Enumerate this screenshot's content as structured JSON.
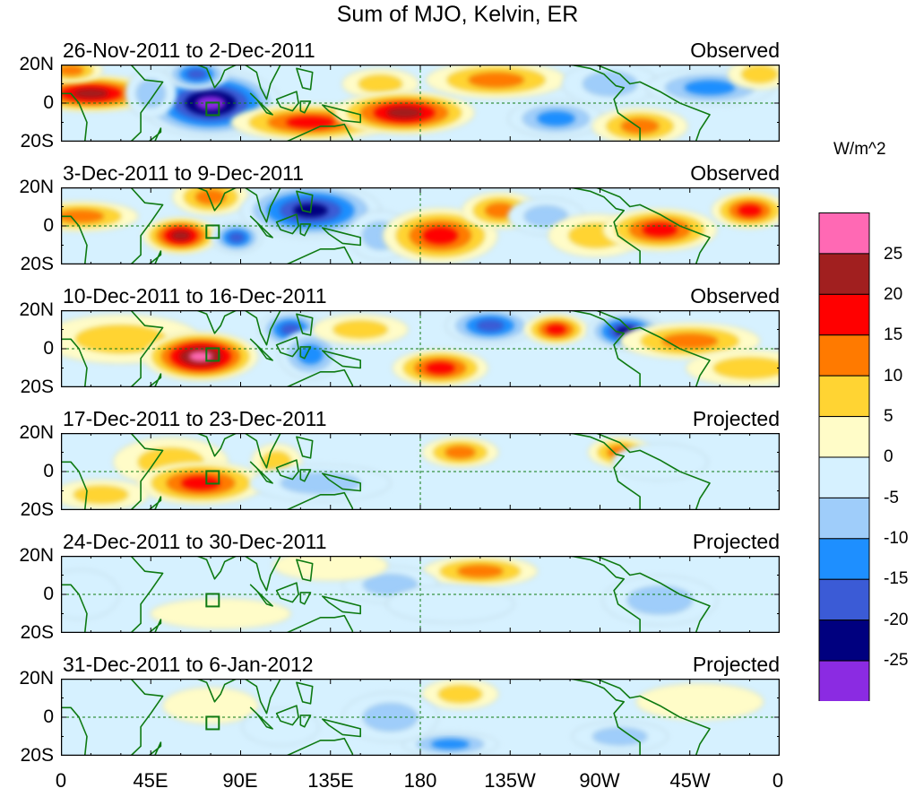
{
  "title": "Sum of MJO, Kelvin, ER",
  "units": "W/m^2",
  "colors": {
    "levels": [
      "#8B2BE2",
      "#00007F",
      "#3B5BD6",
      "#1E8FFF",
      "#9FCDFA",
      "#D6F1FF",
      "#FFFCC8",
      "#FFD433",
      "#FF7A00",
      "#FF0000",
      "#A11F1F",
      "#FF69B4"
    ],
    "coast": "#0E7A12",
    "grid": "#0E7A12"
  },
  "panels": [
    {
      "date": "26-Nov-2011 to 2-Dec-2011",
      "status": "Observed"
    },
    {
      "date": "3-Dec-2011 to 9-Dec-2011",
      "status": "Observed"
    },
    {
      "date": "10-Dec-2011 to 16-Dec-2011",
      "status": "Observed"
    },
    {
      "date": "17-Dec-2011 to 23-Dec-2011",
      "status": "Projected"
    },
    {
      "date": "24-Dec-2011 to 30-Dec-2011",
      "status": "Projected"
    },
    {
      "date": "31-Dec-2011 to 6-Jan-2012",
      "status": "Projected"
    }
  ],
  "chart_data": {
    "type": "heatmap",
    "title": "Sum of MJO, Kelvin, ER",
    "colorbar_label": "W/m^2",
    "colorbar_ticks": [
      "25",
      "20",
      "15",
      "10",
      "5",
      "0",
      "-5",
      "-10",
      "-15",
      "-20",
      "-25"
    ],
    "y_ticks": [
      "20N",
      "0",
      "20S"
    ],
    "x_ticks": [
      "0",
      "45E",
      "90E",
      "135E",
      "180",
      "135W",
      "90W",
      "45W",
      "0"
    ],
    "lon_range": [
      0,
      360
    ],
    "lat_range": [
      -20,
      20
    ],
    "fields": [
      [
        {
          "lon": 15,
          "lat": 5,
          "sx": 22,
          "sy": 6,
          "v": 22
        },
        {
          "lon": 5,
          "lat": 17,
          "sx": 10,
          "sy": 4,
          "v": 14
        },
        {
          "lon": 75,
          "lat": 0,
          "sx": 22,
          "sy": 11,
          "v": -28
        },
        {
          "lon": 68,
          "lat": 15,
          "sx": 10,
          "sy": 5,
          "v": -18
        },
        {
          "lon": 45,
          "lat": 5,
          "sx": 8,
          "sy": 8,
          "v": -6
        },
        {
          "lon": 125,
          "lat": -10,
          "sx": 25,
          "sy": 6,
          "v": 18
        },
        {
          "lon": 160,
          "lat": 10,
          "sx": 12,
          "sy": 5,
          "v": 10
        },
        {
          "lon": 172,
          "lat": -5,
          "sx": 22,
          "sy": 7,
          "v": 24
        },
        {
          "lon": 218,
          "lat": 12,
          "sx": 22,
          "sy": 6,
          "v": 13
        },
        {
          "lon": 248,
          "lat": -8,
          "sx": 15,
          "sy": 6,
          "v": -12
        },
        {
          "lon": 275,
          "lat": 10,
          "sx": 15,
          "sy": 7,
          "v": -8
        },
        {
          "lon": 290,
          "lat": -12,
          "sx": 15,
          "sy": 6,
          "v": 12
        },
        {
          "lon": 325,
          "lat": 8,
          "sx": 20,
          "sy": 6,
          "v": -12
        },
        {
          "lon": 350,
          "lat": 15,
          "sx": 10,
          "sy": 5,
          "v": 8
        }
      ],
      [
        {
          "lon": 10,
          "lat": 5,
          "sx": 18,
          "sy": 5,
          "v": 14
        },
        {
          "lon": 60,
          "lat": -5,
          "sx": 12,
          "sy": 6,
          "v": 24
        },
        {
          "lon": 75,
          "lat": 15,
          "sx": 12,
          "sy": 6,
          "v": 12
        },
        {
          "lon": 88,
          "lat": -6,
          "sx": 8,
          "sy": 5,
          "v": -20
        },
        {
          "lon": 125,
          "lat": 8,
          "sx": 22,
          "sy": 9,
          "v": -24
        },
        {
          "lon": 160,
          "lat": -5,
          "sx": 10,
          "sy": 8,
          "v": -8
        },
        {
          "lon": 190,
          "lat": -5,
          "sx": 18,
          "sy": 9,
          "v": 20
        },
        {
          "lon": 220,
          "lat": 8,
          "sx": 12,
          "sy": 6,
          "v": 12
        },
        {
          "lon": 243,
          "lat": 5,
          "sx": 12,
          "sy": 6,
          "v": -10
        },
        {
          "lon": 268,
          "lat": -5,
          "sx": 15,
          "sy": 7,
          "v": 8
        },
        {
          "lon": 300,
          "lat": -2,
          "sx": 18,
          "sy": 7,
          "v": 18
        },
        {
          "lon": 345,
          "lat": 8,
          "sx": 12,
          "sy": 6,
          "v": 18
        }
      ],
      [
        {
          "lon": 30,
          "lat": 5,
          "sx": 25,
          "sy": 8,
          "v": 8
        },
        {
          "lon": 70,
          "lat": -4,
          "sx": 18,
          "sy": 8,
          "v": 28
        },
        {
          "lon": 115,
          "lat": 10,
          "sx": 10,
          "sy": 6,
          "v": -20
        },
        {
          "lon": 125,
          "lat": -3,
          "sx": 10,
          "sy": 8,
          "v": -12
        },
        {
          "lon": 150,
          "lat": 10,
          "sx": 15,
          "sy": 5,
          "v": 10
        },
        {
          "lon": 190,
          "lat": -10,
          "sx": 15,
          "sy": 6,
          "v": 18
        },
        {
          "lon": 215,
          "lat": 12,
          "sx": 14,
          "sy": 6,
          "v": -20
        },
        {
          "lon": 248,
          "lat": 10,
          "sx": 10,
          "sy": 5,
          "v": 16
        },
        {
          "lon": 283,
          "lat": 9,
          "sx": 12,
          "sy": 6,
          "v": -24
        },
        {
          "lon": 315,
          "lat": 4,
          "sx": 22,
          "sy": 6,
          "v": 12
        },
        {
          "lon": 345,
          "lat": -10,
          "sx": 20,
          "sy": 6,
          "v": 8
        }
      ],
      [
        {
          "lon": 55,
          "lat": 5,
          "sx": 18,
          "sy": 8,
          "v": 6
        },
        {
          "lon": 70,
          "lat": -6,
          "sx": 20,
          "sy": 7,
          "v": 17
        },
        {
          "lon": 108,
          "lat": 5,
          "sx": 8,
          "sy": 6,
          "v": 8
        },
        {
          "lon": 130,
          "lat": -6,
          "sx": 22,
          "sy": 6,
          "v": -6
        },
        {
          "lon": 200,
          "lat": 10,
          "sx": 12,
          "sy": 5,
          "v": 12
        },
        {
          "lon": 280,
          "lat": 10,
          "sx": 10,
          "sy": 5,
          "v": 14
        },
        {
          "lon": 300,
          "lat": 5,
          "sx": 15,
          "sy": 6,
          "v": -5
        },
        {
          "lon": 20,
          "lat": -12,
          "sx": 15,
          "sy": 5,
          "v": 6
        }
      ],
      [
        {
          "lon": 210,
          "lat": 12,
          "sx": 18,
          "sy": 5,
          "v": 14
        },
        {
          "lon": 165,
          "lat": 5,
          "sx": 15,
          "sy": 6,
          "v": -6
        },
        {
          "lon": 195,
          "lat": -5,
          "sx": 20,
          "sy": 6,
          "v": -5
        },
        {
          "lon": 300,
          "lat": -3,
          "sx": 18,
          "sy": 8,
          "v": -6
        },
        {
          "lon": 80,
          "lat": -10,
          "sx": 22,
          "sy": 5,
          "v": 4
        },
        {
          "lon": 10,
          "lat": 0,
          "sx": 12,
          "sy": 8,
          "v": -5
        },
        {
          "lon": 135,
          "lat": 15,
          "sx": 18,
          "sy": 5,
          "v": 4
        }
      ],
      [
        {
          "lon": 200,
          "lat": 12,
          "sx": 12,
          "sy": 5,
          "v": 10
        },
        {
          "lon": 195,
          "lat": -14,
          "sx": 15,
          "sy": 4,
          "v": -12
        },
        {
          "lon": 165,
          "lat": 0,
          "sx": 15,
          "sy": 8,
          "v": -6
        },
        {
          "lon": 75,
          "lat": 6,
          "sx": 15,
          "sy": 6,
          "v": 4
        },
        {
          "lon": 110,
          "lat": -5,
          "sx": 12,
          "sy": 6,
          "v": -5
        },
        {
          "lon": 280,
          "lat": -10,
          "sx": 15,
          "sy": 5,
          "v": -6
        },
        {
          "lon": 320,
          "lat": 8,
          "sx": 20,
          "sy": 6,
          "v": 4
        }
      ]
    ]
  }
}
